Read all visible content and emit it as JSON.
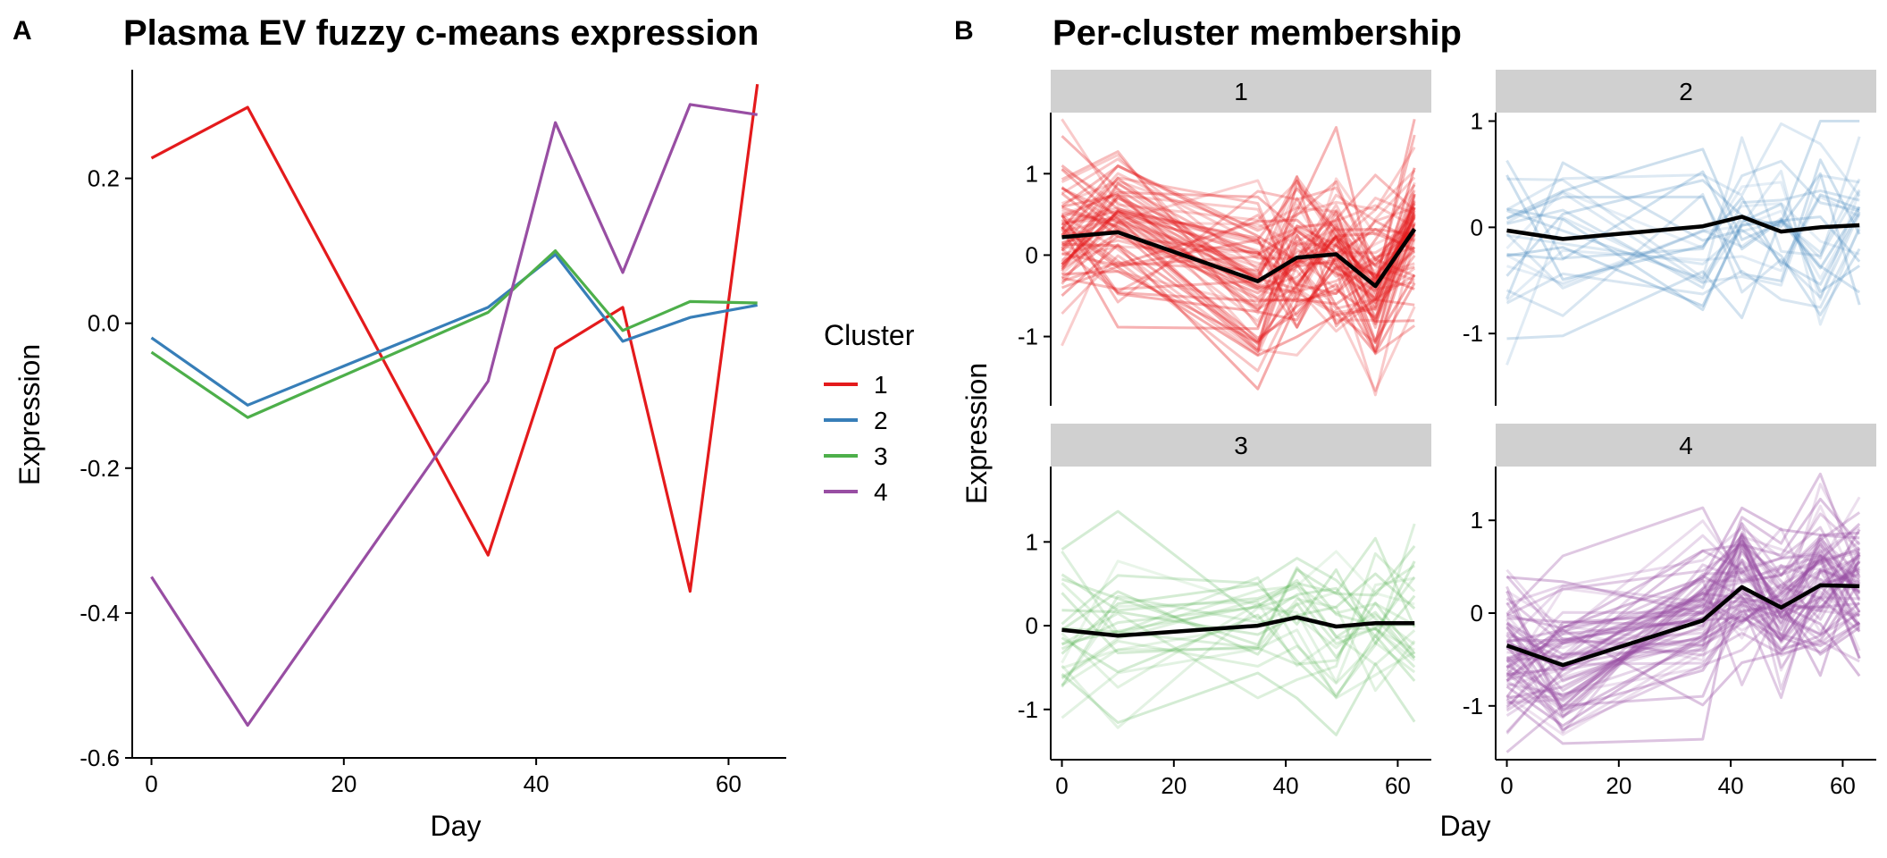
{
  "figure": {
    "panel_a": {
      "tag": "A",
      "title": "Plasma EV fuzzy c-means expression",
      "xlabel": "Day",
      "ylabel": "Expression",
      "legend_title": "Cluster"
    },
    "panel_b": {
      "tag": "B",
      "title": "Per-cluster membership",
      "xlabel": "Day",
      "ylabel": "Expression"
    }
  },
  "chart_data": [
    {
      "type": "line",
      "title": "Plasma EV fuzzy c-means expression",
      "xlabel": "Day",
      "ylabel": "Expression",
      "x": [
        0,
        10,
        35,
        42,
        49,
        56,
        63
      ],
      "xlim": [
        -2,
        66
      ],
      "ylim": [
        -0.6,
        0.35
      ],
      "x_ticks": [
        0,
        20,
        40,
        60
      ],
      "y_ticks": [
        -0.6,
        -0.4,
        -0.2,
        0.0,
        0.2
      ],
      "y_tick_labels": [
        "-0.6",
        "-0.4",
        "-0.2",
        "0.0",
        "0.2"
      ],
      "grid": false,
      "legend": {
        "title": "Cluster",
        "placement": "right"
      },
      "series": [
        {
          "name": "1",
          "color": "#E41A1C",
          "values": [
            0.228,
            0.298,
            -0.32,
            -0.035,
            0.022,
            -0.37,
            0.33
          ]
        },
        {
          "name": "2",
          "color": "#377EB8",
          "values": [
            -0.02,
            -0.113,
            0.022,
            0.095,
            -0.025,
            0.008,
            0.025
          ]
        },
        {
          "name": "3",
          "color": "#4DAF4A",
          "values": [
            -0.04,
            -0.13,
            0.015,
            0.1,
            -0.01,
            0.03,
            0.028
          ]
        },
        {
          "name": "4",
          "color": "#984EA3",
          "values": [
            -0.35,
            -0.555,
            -0.08,
            0.277,
            0.07,
            0.302,
            0.288
          ]
        }
      ]
    },
    {
      "type": "line",
      "title": "Per-cluster membership",
      "xlabel": "Day",
      "ylabel": "Expression",
      "x": [
        0,
        10,
        35,
        42,
        49,
        56,
        63
      ],
      "xlim": [
        -2,
        66
      ],
      "x_ticks": [
        0,
        20,
        40,
        60
      ],
      "grid": false,
      "facets": [
        {
          "name": "1",
          "color": "#E41A1C",
          "ylim": [
            -1.85,
            1.75
          ],
          "y_ticks": [
            -1,
            0,
            1
          ],
          "profile_count": 70,
          "spread": 0.42,
          "profile_alpha": 0.28,
          "mean_values": [
            0.22,
            0.28,
            -0.32,
            -0.03,
            0.01,
            -0.38,
            0.32
          ]
        },
        {
          "name": "2",
          "color": "#377EB8",
          "ylim": [
            -1.68,
            1.08
          ],
          "y_ticks": [
            -1,
            0,
            1
          ],
          "profile_count": 24,
          "spread": 0.38,
          "profile_alpha": 0.2,
          "mean_values": [
            -0.03,
            -0.11,
            0.01,
            0.1,
            -0.04,
            0.0,
            0.02
          ]
        },
        {
          "name": "3",
          "color": "#4DAF4A",
          "ylim": [
            -1.6,
            1.9
          ],
          "y_ticks": [
            -1,
            0,
            1
          ],
          "profile_count": 26,
          "spread": 0.4,
          "profile_alpha": 0.18,
          "mean_values": [
            -0.05,
            -0.12,
            0.0,
            0.1,
            -0.01,
            0.03,
            0.03
          ]
        },
        {
          "name": "4",
          "color": "#984EA3",
          "ylim": [
            -1.58,
            1.58
          ],
          "y_ticks": [
            -1,
            0,
            1
          ],
          "profile_count": 70,
          "spread": 0.36,
          "profile_alpha": 0.28,
          "mean_values": [
            -0.35,
            -0.56,
            -0.08,
            0.28,
            0.06,
            0.3,
            0.29
          ]
        }
      ]
    }
  ]
}
